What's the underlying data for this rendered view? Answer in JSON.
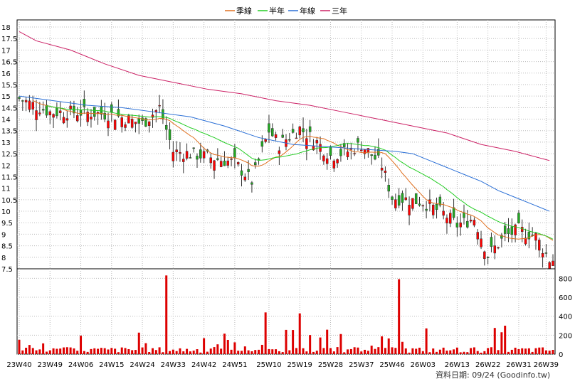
{
  "chart_data": {
    "type": "candlestick+volume",
    "legend": [
      {
        "name": "季線",
        "color": "#e07020"
      },
      {
        "name": "半年",
        "color": "#22cc22"
      },
      {
        "name": "年線",
        "color": "#2a6fd6"
      },
      {
        "name": "三年",
        "color": "#cc2266"
      }
    ],
    "price_axis": {
      "ylim": [
        7.5,
        18
      ],
      "ticks": [
        "18",
        "17.5",
        "17",
        "16.5",
        "16",
        "15.5",
        "15",
        "14.5",
        "14",
        "13.5",
        "13",
        "12.5",
        "12",
        "11.5",
        "11",
        "10.5",
        "10",
        "9.5",
        "9",
        "8.5",
        "8",
        "7.5"
      ]
    },
    "volume_axis": {
      "ylim": [
        0,
        900
      ],
      "ticks": [
        "800",
        "600",
        "400",
        "200",
        "0"
      ]
    },
    "x_ticks": [
      "23W40",
      "23W49",
      "24W06",
      "24W15",
      "24W24",
      "24W33",
      "24W42",
      "24W51",
      "25W10",
      "25W19",
      "25W28",
      "25W37",
      "25W46",
      "26W03",
      "26W13",
      "26W22",
      "26W31",
      "26W39"
    ],
    "x_tick_weeks": [
      0,
      9,
      18,
      27,
      36,
      45,
      54,
      63,
      73,
      82,
      91,
      100,
      109,
      118,
      128,
      137,
      146,
      154
    ],
    "num_weeks": 157,
    "ma_year_x": [
      0,
      10,
      20,
      30,
      40,
      50,
      60,
      70,
      80,
      90,
      100,
      110,
      115,
      120,
      125,
      130,
      135,
      140,
      145,
      150,
      155
    ],
    "ma_year_y": [
      15.0,
      14.8,
      14.6,
      14.5,
      14.3,
      14.1,
      13.7,
      13.2,
      12.9,
      12.8,
      12.7,
      12.6,
      12.5,
      12.2,
      11.9,
      11.6,
      11.3,
      10.9,
      10.6,
      10.3,
      10.0
    ],
    "ma_3y_x": [
      0,
      5,
      15,
      25,
      35,
      45,
      55,
      65,
      75,
      85,
      95,
      105,
      115,
      125,
      135,
      145,
      155
    ],
    "ma_3y_y": [
      17.8,
      17.4,
      17.0,
      16.4,
      15.9,
      15.6,
      15.3,
      15.1,
      14.8,
      14.6,
      14.3,
      14.0,
      13.7,
      13.4,
      12.9,
      12.6,
      12.2
    ],
    "volume_peaks": [
      {
        "week": 43,
        "value": 830
      },
      {
        "week": 72,
        "value": 440
      },
      {
        "week": 82,
        "value": 430
      },
      {
        "week": 111,
        "value": 790
      },
      {
        "week": 142,
        "value": 300
      }
    ],
    "footer": "資料日期: 09/24  (Goodinfo.tw)"
  }
}
